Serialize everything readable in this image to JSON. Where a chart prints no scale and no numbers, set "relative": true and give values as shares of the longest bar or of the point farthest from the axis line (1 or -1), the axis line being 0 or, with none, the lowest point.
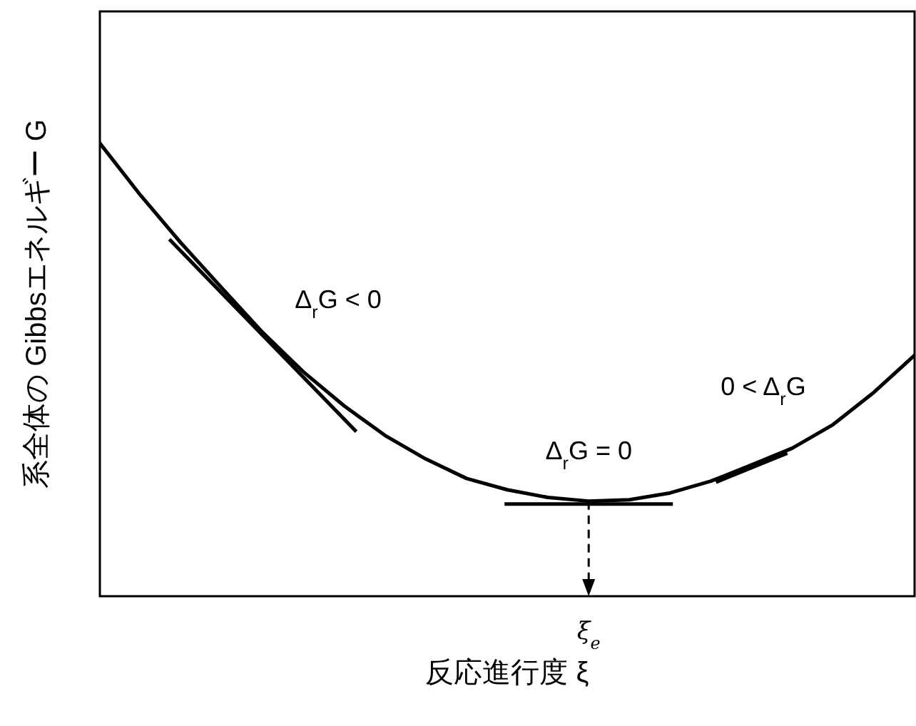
{
  "chart_data": {
    "type": "line",
    "relative": true,
    "xlabel": "反応進行度 ξ",
    "ylabel": "系全体の Gibbsエネルギー G",
    "marker": "none",
    "line_style": "solid",
    "categories": [
      null,
      null,
      null,
      null,
      null,
      null,
      null,
      null,
      null,
      null,
      null,
      null,
      null,
      null,
      null,
      null,
      null,
      null,
      null,
      null,
      null
    ],
    "series": [
      {
        "color": "#000000",
        "values": [
          1.0,
          0.885,
          0.779,
          0.68,
          0.582,
          0.495,
          0.42,
          0.355,
          0.303,
          0.26,
          0.235,
          0.218,
          0.21,
          0.213,
          0.228,
          0.254,
          0.29,
          0.327,
          0.379,
          0.45,
          0.532
        ]
      }
    ],
    "annotations": [
      "Δ$_{r}$G < 0",
      "Δ$_{r}$G = 0",
      "0 < Δ$_{r}$G",
      "ξ$_{e}$"
    ]
  }
}
